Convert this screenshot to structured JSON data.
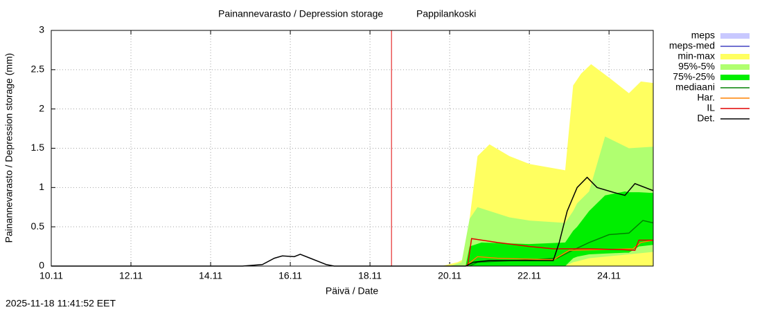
{
  "chart_data": {
    "type": "line",
    "title": "Painannevarasto / Depression storage",
    "station": "Pappilankoski",
    "x_label": "Päivä / Date",
    "y_label": "Painannevarasto / Depression storage (mm)",
    "timestamp": "2025-11-18 11:41:52 EET",
    "xlim": [
      10,
      25.11
    ],
    "ylim": [
      0,
      3
    ],
    "xticks": [
      {
        "value": 10,
        "label": "10.11"
      },
      {
        "value": 12,
        "label": "12.11"
      },
      {
        "value": 14,
        "label": "14.11"
      },
      {
        "value": 16,
        "label": "16.11"
      },
      {
        "value": 18,
        "label": "18.11"
      },
      {
        "value": 20,
        "label": "20.11"
      },
      {
        "value": 22,
        "label": "22.11"
      },
      {
        "value": 24,
        "label": "24.11"
      }
    ],
    "yticks": [
      0,
      0.5,
      1,
      1.5,
      2,
      2.5,
      3
    ],
    "grid": true,
    "forecast_start": 18.54,
    "forecast_color": "#e00000",
    "series": [
      {
        "name": "meps",
        "kind": "band",
        "color": "#c8c8ff",
        "x": [],
        "lower": [],
        "upper": []
      },
      {
        "name": "meps-med",
        "kind": "line",
        "color": "#4040c0",
        "x": [],
        "values": []
      },
      {
        "name": "min-max",
        "kind": "band",
        "color": "#ffff60",
        "x": [
          19.8,
          20.2,
          20.4,
          20.5,
          20.7,
          21,
          21.5,
          22,
          22.9,
          23.1,
          23.3,
          23.55,
          24,
          24.5,
          24.8,
          25.11
        ],
        "lower": [
          0,
          0,
          0,
          0,
          0,
          0,
          0,
          0,
          0,
          0,
          0,
          0,
          0,
          0,
          0,
          0
        ],
        "upper": [
          0,
          0.05,
          0.1,
          0.6,
          1.4,
          1.55,
          1.4,
          1.3,
          1.22,
          2.3,
          2.45,
          2.57,
          2.4,
          2.2,
          2.35,
          2.33
        ]
      },
      {
        "name": "95%-5%",
        "kind": "band",
        "color": "#b0ff70",
        "x": [
          20,
          20.3,
          20.5,
          20.7,
          21.5,
          22,
          22.9,
          23.1,
          23.2,
          23.5,
          23.9,
          24.5,
          25.11
        ],
        "lower": [
          0,
          0,
          0,
          0,
          0,
          0,
          0,
          0.05,
          0.06,
          0.1,
          0.12,
          0.15,
          0.18
        ],
        "upper": [
          0,
          0.05,
          0.6,
          0.75,
          0.62,
          0.58,
          0.55,
          0.7,
          0.8,
          0.95,
          1.65,
          1.5,
          1.52
        ]
      },
      {
        "name": "75%-25%",
        "kind": "band",
        "color": "#00ee00",
        "x": [
          20.4,
          20.5,
          20.8,
          22,
          22.9,
          23.1,
          23.2,
          23.5,
          23.9,
          24.4,
          24.5,
          24.75,
          25.11
        ],
        "lower": [
          0,
          0,
          0,
          0,
          0,
          0.1,
          0.12,
          0.15,
          0.16,
          0.17,
          0.17,
          0.25,
          0.27
        ],
        "upper": [
          0,
          0.25,
          0.3,
          0.28,
          0.3,
          0.45,
          0.5,
          0.7,
          0.9,
          0.95,
          0.94,
          0.94,
          0.93
        ]
      },
      {
        "name": "mediaani",
        "kind": "line",
        "color": "#008000",
        "x": [
          20.5,
          20.7,
          22,
          22.7,
          23,
          23.5,
          24,
          24.5,
          24.85,
          25.11
        ],
        "values": [
          0,
          0.05,
          0.08,
          0.1,
          0.18,
          0.3,
          0.4,
          0.42,
          0.58,
          0.55
        ]
      },
      {
        "name": "Har.",
        "kind": "line",
        "color": "#ff8000",
        "x": [
          20.4,
          20.7,
          21.2,
          22.6,
          23,
          24.6,
          24.8,
          25.11
        ],
        "values": [
          0,
          0.12,
          0.1,
          0.08,
          0.2,
          0.22,
          0.3,
          0.33
        ]
      },
      {
        "name": "IL",
        "kind": "line",
        "color": "#e00000",
        "x": [
          20.45,
          20.55,
          21.2,
          22,
          22.6,
          23.5,
          24.3,
          24.65,
          24.75,
          25.11
        ],
        "values": [
          0,
          0.35,
          0.3,
          0.25,
          0.22,
          0.22,
          0.21,
          0.2,
          0.33,
          0.33
        ]
      },
      {
        "name": "Det.",
        "kind": "line",
        "color": "#000000",
        "x": [
          10,
          14.8,
          15.3,
          15.6,
          15.8,
          16.1,
          16.25,
          16.5,
          16.9,
          17.1,
          20.4,
          20.6,
          21,
          22.6,
          22.75,
          22.95,
          23.2,
          23.45,
          23.7,
          24.1,
          24.4,
          24.65,
          25.11
        ],
        "values": [
          0,
          0,
          0.02,
          0.1,
          0.13,
          0.12,
          0.15,
          0.1,
          0.02,
          0,
          0,
          0.05,
          0.07,
          0.07,
          0.3,
          0.7,
          1.0,
          1.13,
          1.0,
          0.94,
          0.9,
          1.05,
          0.96
        ]
      }
    ]
  }
}
